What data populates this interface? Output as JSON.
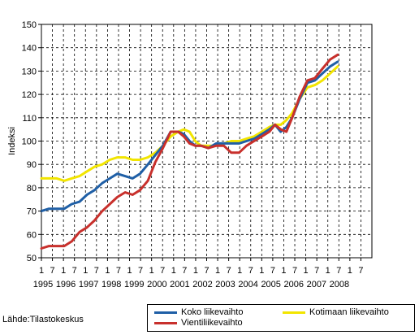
{
  "chart_data": {
    "type": "line",
    "ylabel": "Indeksi",
    "ylim": [
      50,
      150
    ],
    "y_ticks": [
      50,
      60,
      70,
      80,
      90,
      100,
      110,
      120,
      130,
      140,
      150
    ],
    "x_tick_labels": [
      "1",
      "7",
      "1",
      "7",
      "1",
      "7",
      "1",
      "7",
      "1",
      "7",
      "1",
      "7",
      "1",
      "7",
      "1",
      "7",
      "1",
      "7",
      "1",
      "7",
      "1",
      "7",
      "1",
      "7",
      "1",
      "7",
      "1",
      "7",
      "1",
      "7"
    ],
    "year_labels": [
      "1995",
      "1996",
      "1997",
      "1998",
      "1999",
      "2000",
      "2001",
      "2002",
      "2003",
      "2004",
      "2005",
      "2006",
      "2007",
      "2008"
    ],
    "x_start": 1995.0,
    "x_end": 2009.5,
    "grid": true,
    "legend_position": "bottom-right",
    "series": [
      {
        "name": "Koko liikevaihto",
        "color": "#1f5fa6",
        "x": [
          1995.0,
          1995.33,
          1995.67,
          1996.0,
          1996.33,
          1996.67,
          1997.0,
          1997.33,
          1997.67,
          1998.0,
          1998.33,
          1998.67,
          1999.0,
          1999.33,
          1999.67,
          2000.0,
          2000.33,
          2000.67,
          2001.0,
          2001.25,
          2001.5,
          2001.75,
          2002.0,
          2002.33,
          2002.67,
          2003.0,
          2003.33,
          2003.67,
          2004.0,
          2004.33,
          2004.67,
          2005.0,
          2005.25,
          2005.5,
          2005.75,
          2006.0,
          2006.33,
          2006.67,
          2007.0,
          2007.33,
          2007.67,
          2008.0
        ],
        "y": [
          70,
          71,
          71,
          71,
          73,
          74,
          77,
          79,
          82,
          84,
          86,
          85,
          84,
          86,
          90,
          94,
          98,
          104,
          104,
          103,
          100,
          98,
          98,
          97,
          99,
          99,
          99,
          99,
          100,
          101,
          103,
          105,
          107,
          104,
          106,
          110,
          118,
          125,
          126,
          129,
          132,
          134
        ]
      },
      {
        "name": "Kotimaan liikevaihto",
        "color": "#f2e500",
        "x": [
          1995.0,
          1995.33,
          1995.67,
          1996.0,
          1996.33,
          1996.67,
          1997.0,
          1997.33,
          1997.67,
          1998.0,
          1998.33,
          1998.67,
          1999.0,
          1999.33,
          1999.67,
          2000.0,
          2000.33,
          2000.67,
          2001.0,
          2001.25,
          2001.5,
          2001.75,
          2002.0,
          2002.33,
          2002.67,
          2003.0,
          2003.33,
          2003.67,
          2004.0,
          2004.33,
          2004.67,
          2005.0,
          2005.25,
          2005.5,
          2005.75,
          2006.0,
          2006.33,
          2006.67,
          2007.0,
          2007.33,
          2007.67,
          2008.0
        ],
        "y": [
          84,
          84,
          84,
          83,
          84,
          85,
          87,
          89,
          90,
          92,
          93,
          93,
          92,
          92,
          93,
          95,
          98,
          102,
          104,
          105,
          104,
          100,
          98,
          98,
          98,
          99,
          100,
          100,
          101,
          102,
          104,
          106,
          107,
          107,
          109,
          112,
          118,
          123,
          124,
          126,
          129,
          132
        ]
      },
      {
        "name": "Vientiliikevaihto",
        "color": "#c8302c",
        "x": [
          1995.0,
          1995.33,
          1995.67,
          1996.0,
          1996.33,
          1996.67,
          1997.0,
          1997.33,
          1997.67,
          1998.0,
          1998.33,
          1998.67,
          1999.0,
          1999.33,
          1999.67,
          2000.0,
          2000.33,
          2000.67,
          2001.0,
          2001.25,
          2001.5,
          2001.75,
          2002.0,
          2002.33,
          2002.67,
          2003.0,
          2003.33,
          2003.67,
          2004.0,
          2004.33,
          2004.67,
          2005.0,
          2005.25,
          2005.5,
          2005.75,
          2006.0,
          2006.33,
          2006.67,
          2007.0,
          2007.33,
          2007.67,
          2008.0
        ],
        "y": [
          54,
          55,
          55,
          55,
          57,
          61,
          63,
          66,
          70,
          73,
          76,
          78,
          77,
          79,
          83,
          91,
          97,
          104,
          104,
          102,
          99,
          98,
          98,
          97,
          98,
          98,
          95,
          95,
          98,
          100,
          102,
          104,
          107,
          105,
          104,
          110,
          119,
          126,
          127,
          131,
          135,
          137
        ]
      }
    ]
  },
  "legend": {
    "items": [
      "Koko liikevaihto",
      "Kotimaan liikevaihto",
      "Vientiliikevaihto"
    ]
  },
  "source": "Lähde:Tilastokeskus"
}
